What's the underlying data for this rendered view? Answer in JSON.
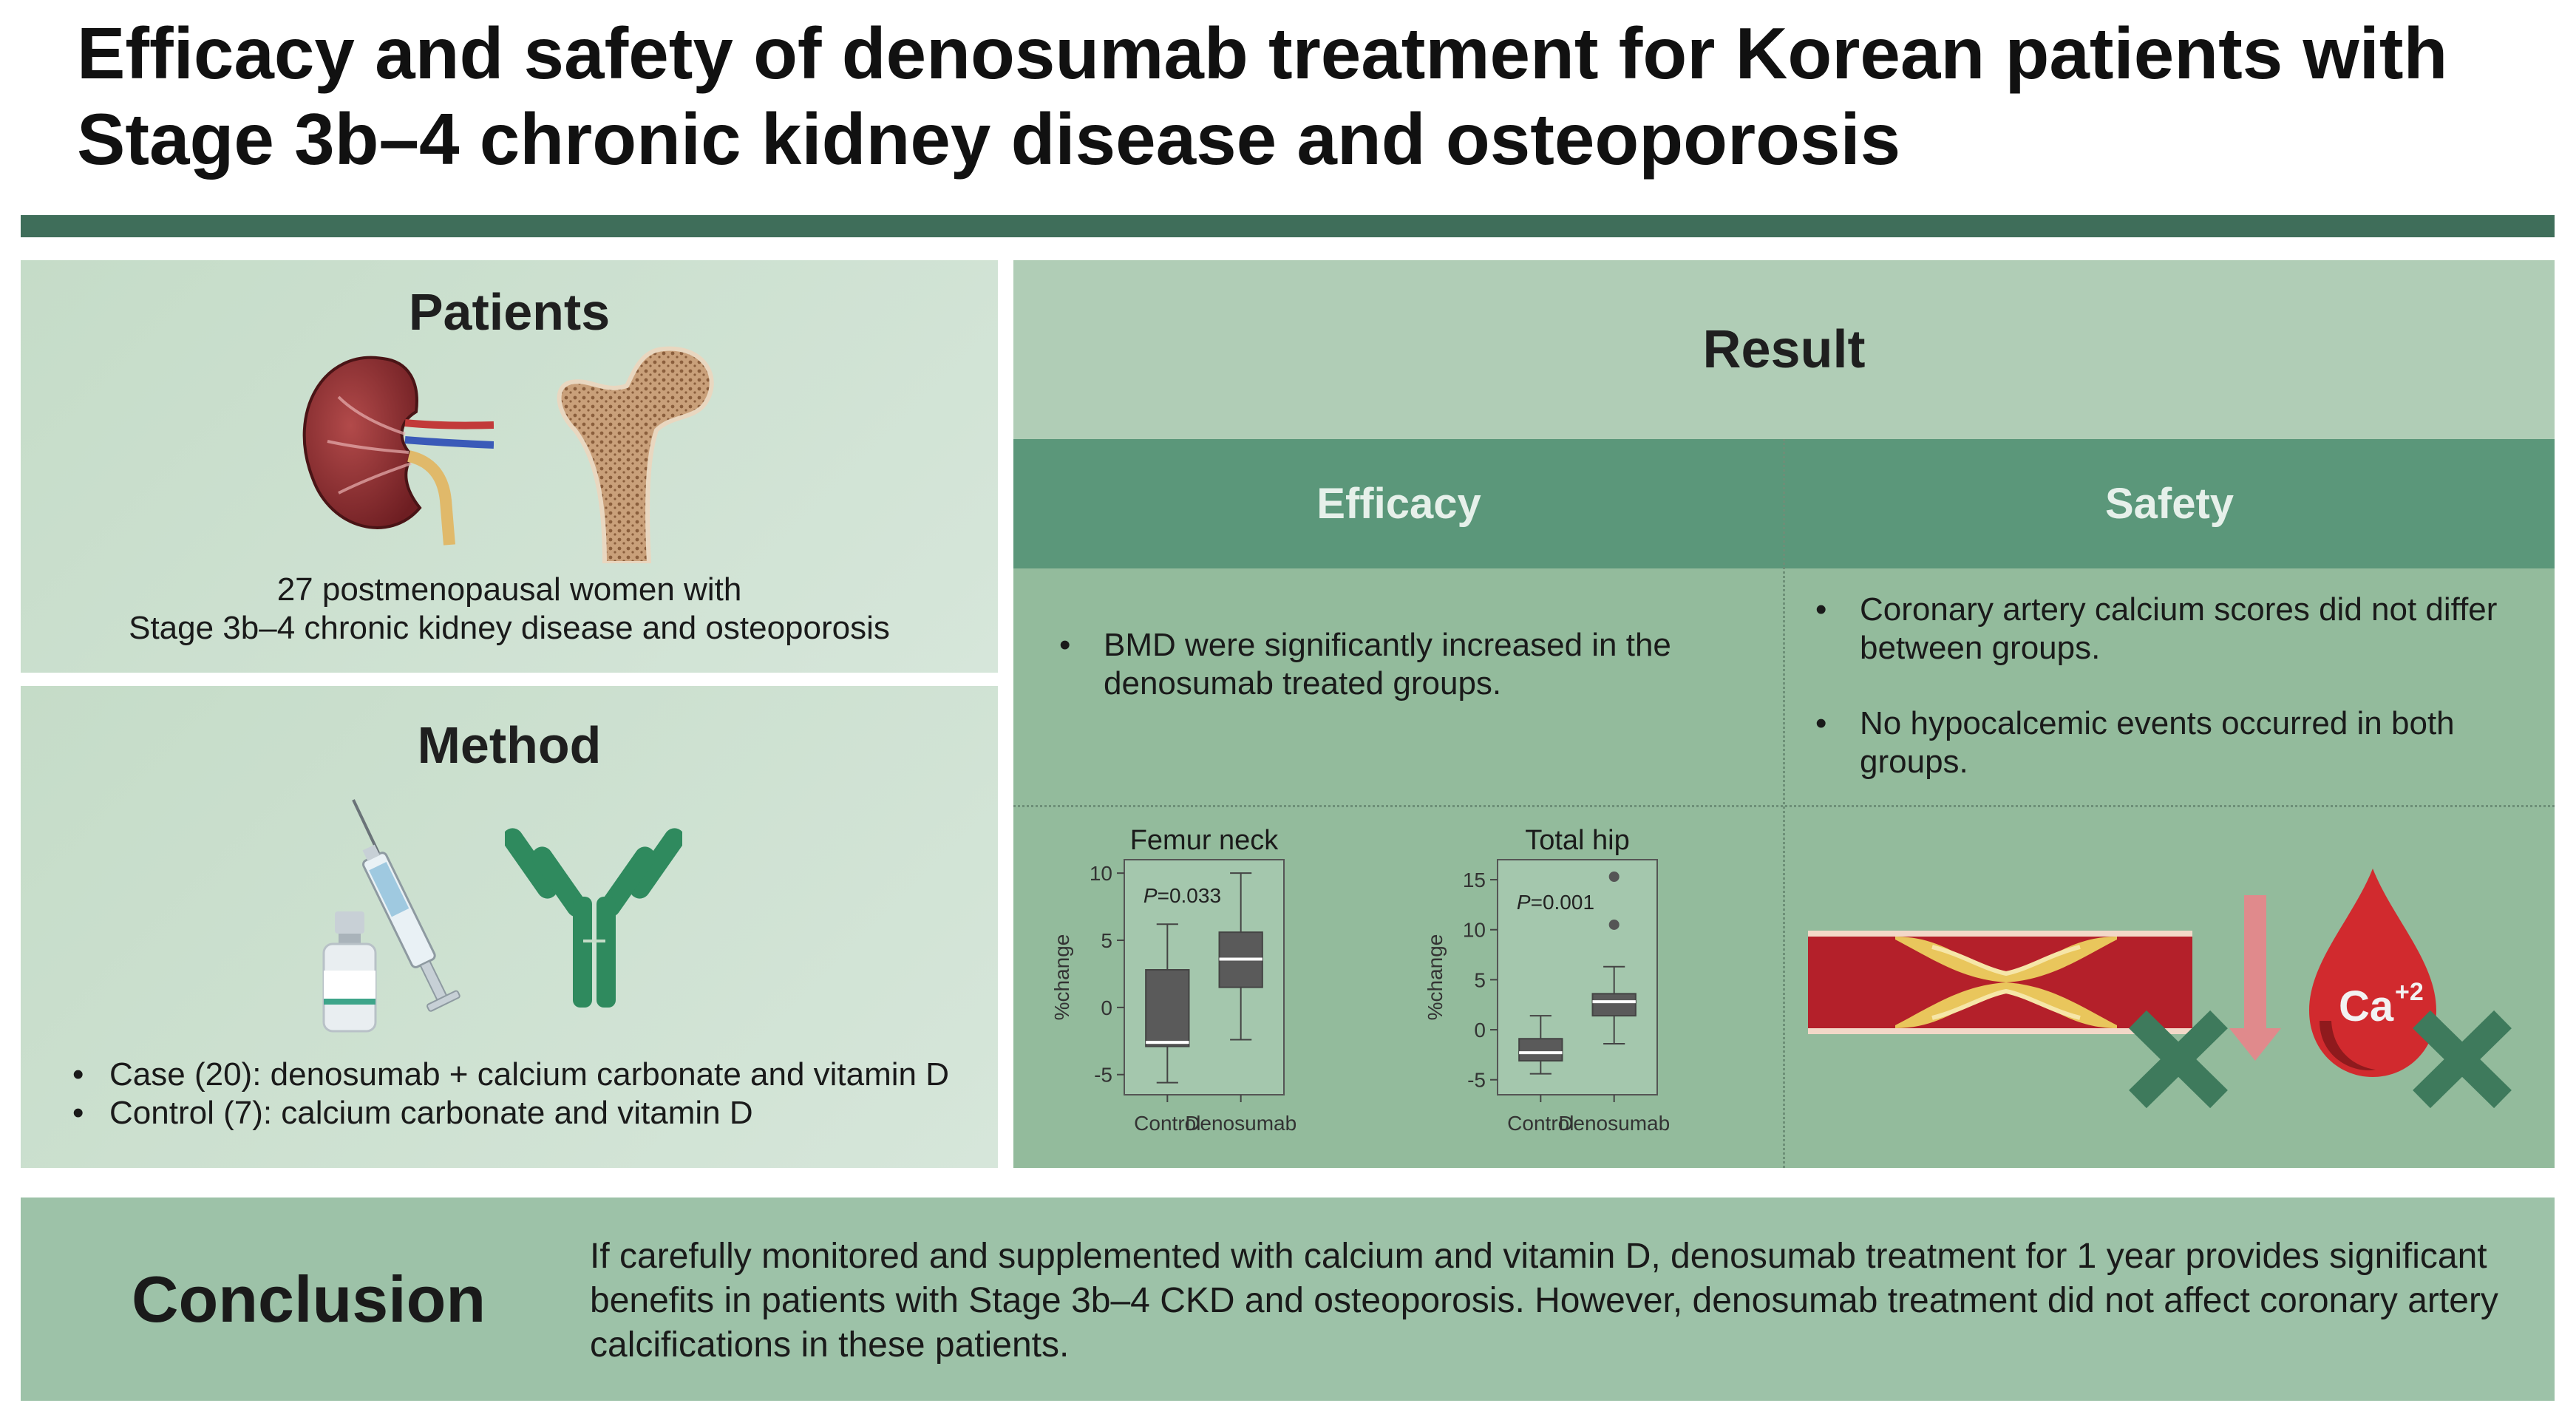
{
  "title": "Efficacy and safety of denosumab treatment for Korean patients with Stage 3b–4 chronic kidney disease and osteoporosis",
  "patients": {
    "heading": "Patients",
    "desc_line1": "27 postmenopausal women with",
    "desc_line2": "Stage 3b–4 chronic kidney disease and osteoporosis",
    "icons": [
      "kidney-icon",
      "femur-bone-icon"
    ]
  },
  "method": {
    "heading": "Method",
    "items": [
      "Case (20): denosumab + calcium carbonate and vitamin D",
      "Control (7): calcium carbonate and vitamin D"
    ],
    "icons": [
      "vial-icon",
      "syringe-icon",
      "antibody-icon"
    ]
  },
  "result": {
    "heading": "Result",
    "efficacy": {
      "heading": "Efficacy",
      "bullets": [
        "BMD were significantly increased in the denosumab treated groups."
      ]
    },
    "safety": {
      "heading": "Safety",
      "bullets": [
        "Coronary artery calcium  scores did not differ between groups.",
        "No hypocalcemic events occurred in both groups."
      ],
      "calcium_label": "Ca",
      "calcium_superscript": "+2",
      "icons": [
        "artery-plaque-icon",
        "down-arrow-icon",
        "blood-drop-icon",
        "cross-icon"
      ]
    }
  },
  "chart_data": [
    {
      "type": "box",
      "title": "Femur neck",
      "ylabel": "%change",
      "categories": [
        "Control",
        "Denosumab"
      ],
      "ylim": [
        -6.5,
        11
      ],
      "yticks": [
        -5,
        0,
        5,
        10
      ],
      "annotation": "P=0.033",
      "annotation_p": "P",
      "annotation_value": "=0.033",
      "boxes": [
        {
          "name": "Control",
          "whisker_low": -5.6,
          "q1": -2.9,
          "median": -2.6,
          "q3": 2.8,
          "whisker_high": 6.2,
          "outliers": []
        },
        {
          "name": "Denosumab",
          "whisker_low": -2.4,
          "q1": 1.5,
          "median": 3.6,
          "q3": 5.6,
          "whisker_high": 10.0,
          "outliers": []
        }
      ]
    },
    {
      "type": "box",
      "title": "Total hip",
      "ylabel": "%change",
      "categories": [
        "Control",
        "Denosumab"
      ],
      "ylim": [
        -6.5,
        17
      ],
      "yticks": [
        -5,
        0,
        5,
        10,
        15
      ],
      "annotation": "P=0.001",
      "annotation_p": "P",
      "annotation_value": "=0.001",
      "boxes": [
        {
          "name": "Control",
          "whisker_low": -4.4,
          "q1": -3.1,
          "median": -2.3,
          "q3": -0.9,
          "whisker_high": 1.4,
          "outliers": []
        },
        {
          "name": "Denosumab",
          "whisker_low": -1.4,
          "q1": 1.4,
          "median": 2.8,
          "q3": 3.6,
          "whisker_high": 6.3,
          "outliers": [
            10.5,
            15.3
          ]
        }
      ]
    }
  ],
  "conclusion": {
    "heading": "Conclusion",
    "text": "If carefully monitored and supplemented with calcium and vitamin D, denosumab treatment for 1 year provides significant benefits in patients with Stage 3b–4 CKD and osteoporosis. However, denosumab treatment did not affect coronary artery calcifications in these patients."
  },
  "colors": {
    "title_bar": "#3f6e5a",
    "panel_bg": "#c5dcc8",
    "result_bg": "#b0cdb6",
    "header_bg": "#5b977a",
    "cell_bg": "#93bb9c",
    "conclusion_bg": "#9dc2a8",
    "box_fill": "#5a5a5a",
    "cross": "#3e7a5c",
    "blood": "#d12a2e"
  }
}
